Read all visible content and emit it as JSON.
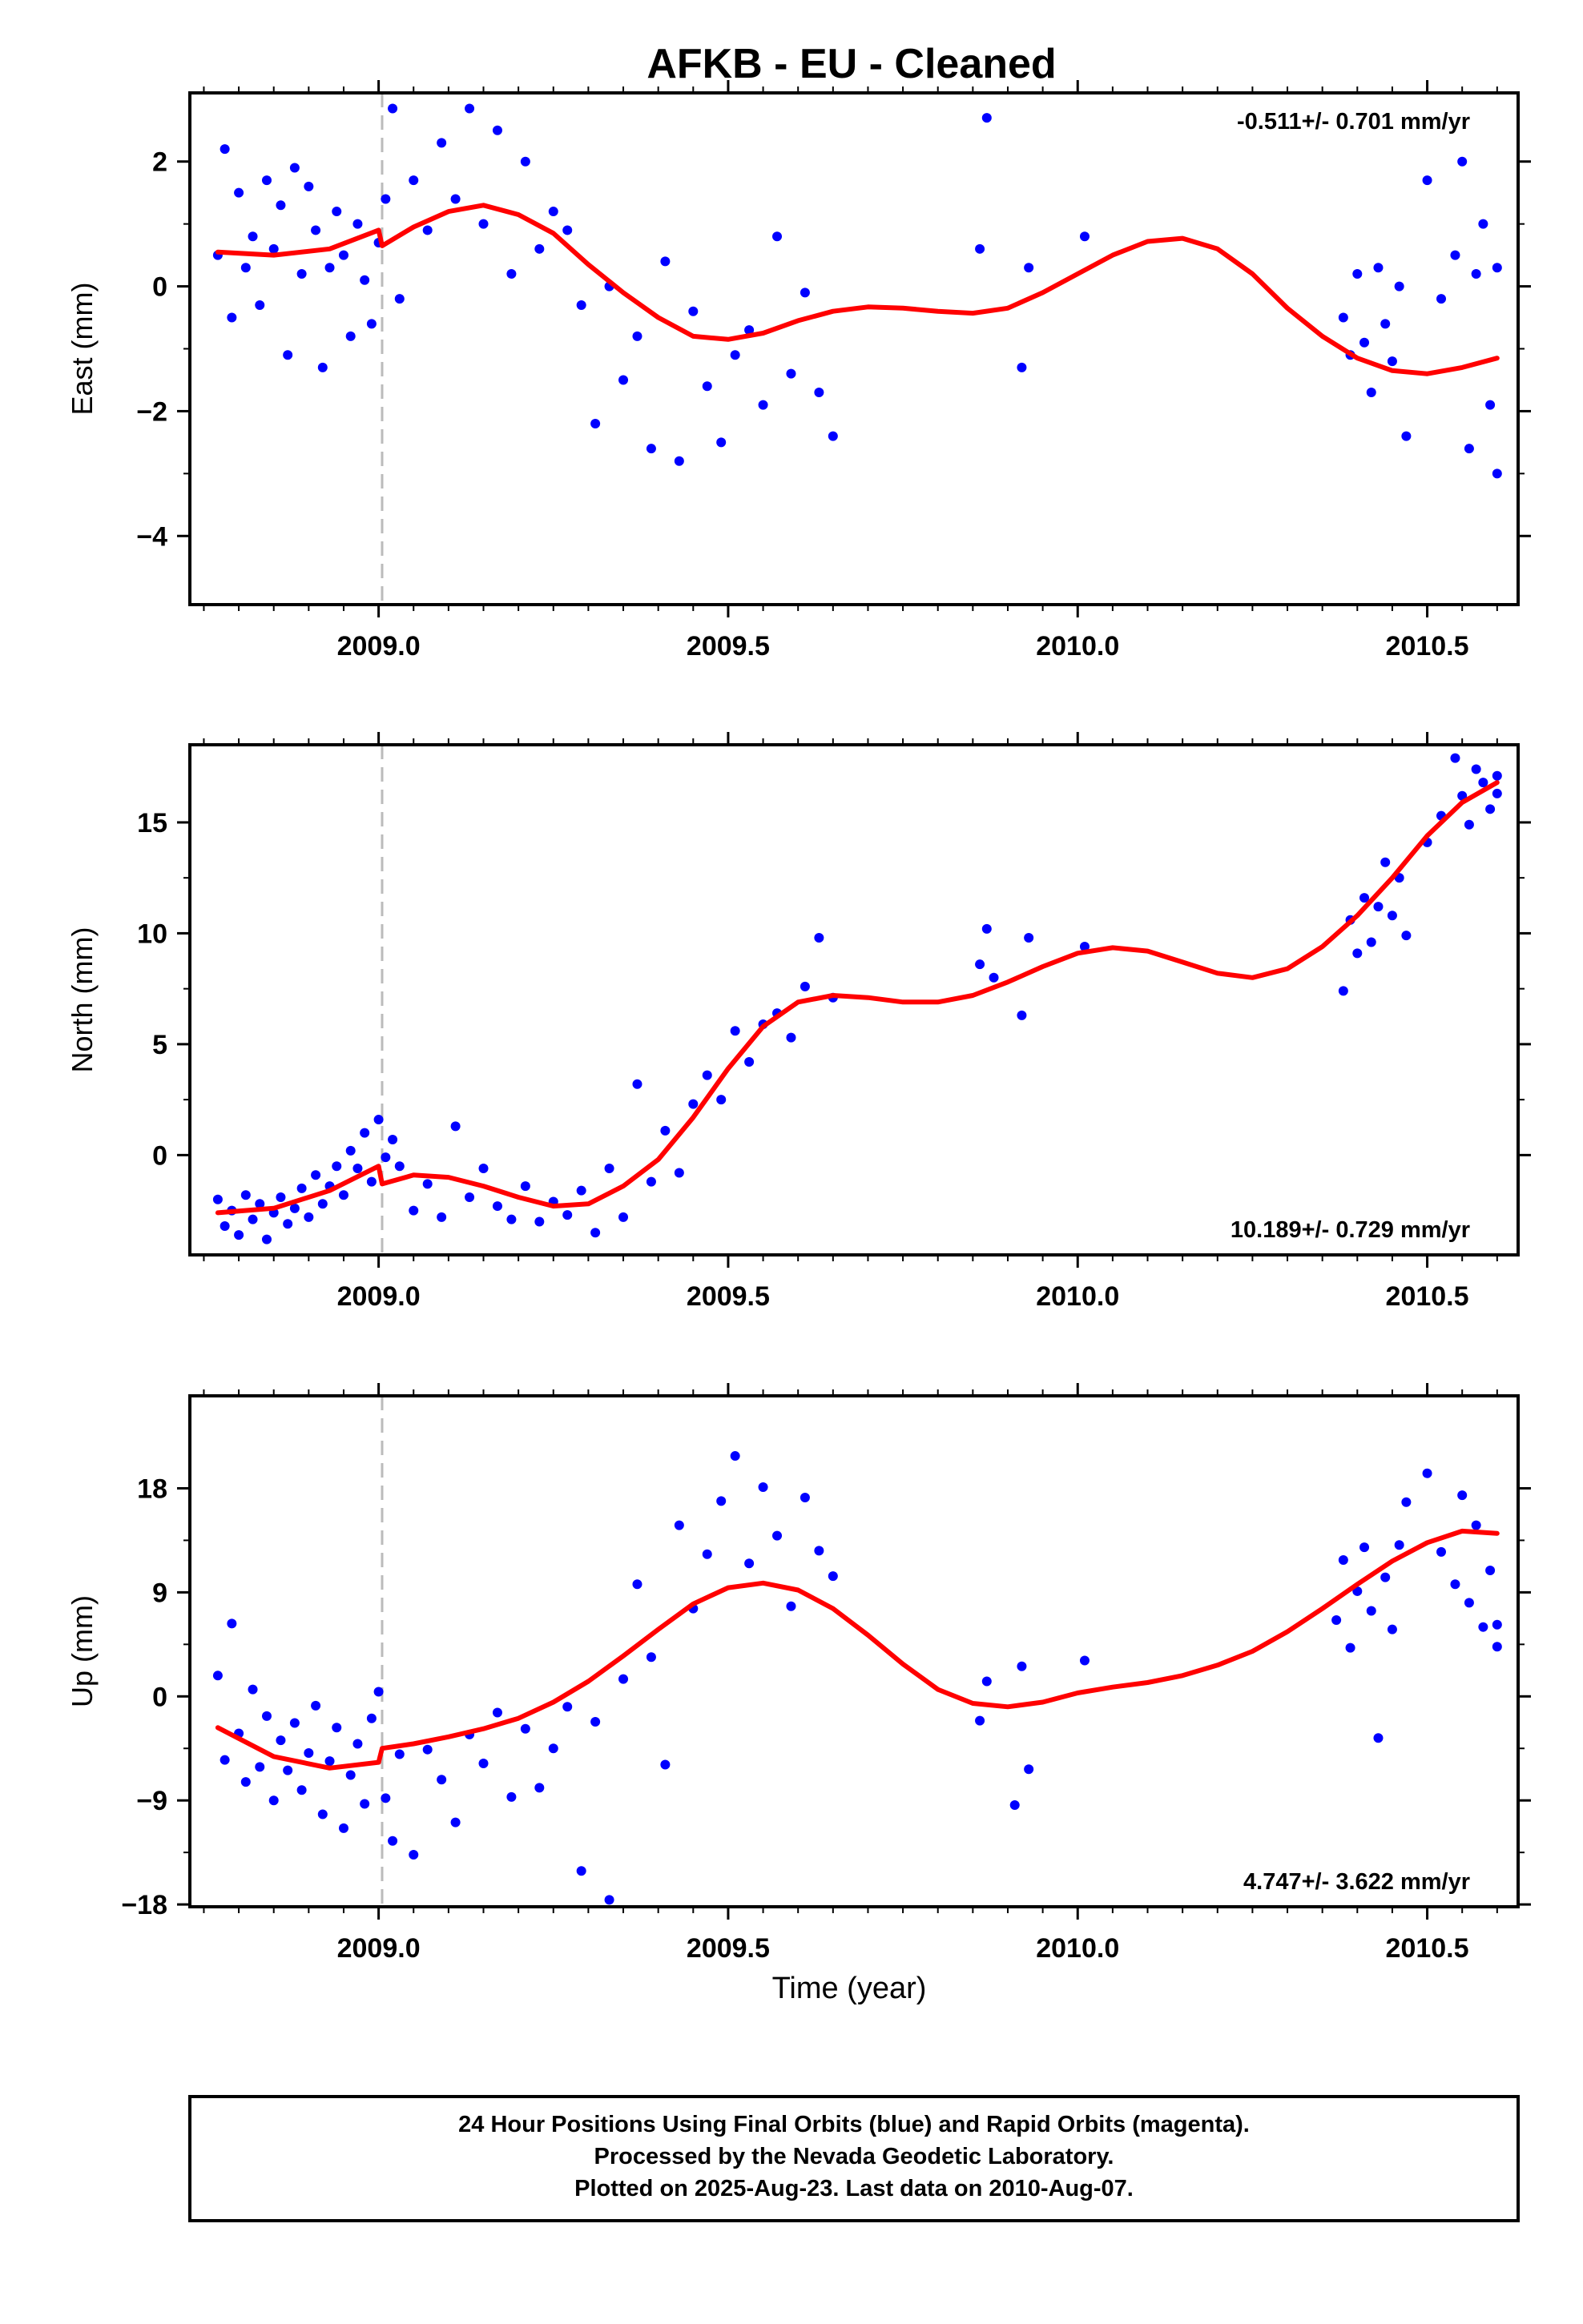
{
  "title": "AFKB  - EU - Cleaned",
  "xlabel": "Time (year)",
  "x_ticks": [
    2009.0,
    2009.5,
    2010.0,
    2010.5
  ],
  "x_tick_labels": [
    "2009.0",
    "2009.5",
    "2010.0",
    "2010.5"
  ],
  "footer": [
    "24 Hour Positions Using Final Orbits (blue) and Rapid Orbits (magenta).",
    "Processed by the Nevada Geodetic Laboratory.",
    "Plotted on 2025-Aug-23. Last data on 2010-Aug-07."
  ],
  "colors": {
    "final_orbits": "#0000ff",
    "model": "#ff0000",
    "event_line": "#bbbbbb",
    "frame": "#000000"
  },
  "chart_data": [
    {
      "type": "scatter",
      "ylabel": "East (mm)",
      "rate_label": "-0.511+/- 0.701 mm/yr",
      "xlim": [
        2008.73,
        2010.63
      ],
      "ylim": [
        -5.1,
        3.1
      ],
      "y_ticks": [
        -4,
        -2,
        0,
        2
      ],
      "y_tick_labels": [
        "−4",
        "−2",
        "0",
        "2"
      ],
      "event_x": 2009.005,
      "model_curve": {
        "x": [
          2008.77,
          2008.85,
          2008.93,
          2009.0,
          2009.005,
          2009.05,
          2009.1,
          2009.15,
          2009.2,
          2009.25,
          2009.3,
          2009.35,
          2009.4,
          2009.45,
          2009.5,
          2009.55,
          2009.6,
          2009.65,
          2009.7,
          2009.75,
          2009.8,
          2009.85,
          2009.9,
          2009.95,
          2010.0,
          2010.05,
          2010.1,
          2010.15,
          2010.2,
          2010.25,
          2010.3,
          2010.35,
          2010.4,
          2010.45,
          2010.5,
          2010.55,
          2010.6
        ],
        "y": [
          0.55,
          0.5,
          0.6,
          0.9,
          0.65,
          0.95,
          1.2,
          1.3,
          1.15,
          0.85,
          0.35,
          -0.1,
          -0.5,
          -0.8,
          -0.85,
          -0.75,
          -0.55,
          -0.4,
          -0.33,
          -0.35,
          -0.4,
          -0.43,
          -0.35,
          -0.1,
          0.2,
          0.5,
          0.72,
          0.77,
          0.6,
          0.2,
          -0.35,
          -0.8,
          -1.15,
          -1.35,
          -1.4,
          -1.3,
          -1.15
        ]
      },
      "points": {
        "x": [
          2008.77,
          2008.78,
          2008.79,
          2008.8,
          2008.81,
          2008.82,
          2008.83,
          2008.84,
          2008.85,
          2008.86,
          2008.87,
          2008.88,
          2008.89,
          2008.9,
          2008.91,
          2008.92,
          2008.93,
          2008.94,
          2008.95,
          2008.96,
          2008.97,
          2008.98,
          2008.99,
          2009.0,
          2009.01,
          2009.02,
          2009.03,
          2009.05,
          2009.07,
          2009.09,
          2009.11,
          2009.13,
          2009.15,
          2009.17,
          2009.19,
          2009.21,
          2009.23,
          2009.25,
          2009.27,
          2009.29,
          2009.31,
          2009.33,
          2009.35,
          2009.37,
          2009.39,
          2009.41,
          2009.43,
          2009.45,
          2009.47,
          2009.49,
          2009.51,
          2009.53,
          2009.55,
          2009.57,
          2009.59,
          2009.61,
          2009.63,
          2009.65,
          2009.86,
          2009.87,
          2009.92,
          2009.93,
          2010.01,
          2010.38,
          2010.39,
          2010.4,
          2010.41,
          2010.42,
          2010.43,
          2010.44,
          2010.45,
          2010.46,
          2010.47,
          2010.5,
          2010.52,
          2010.54,
          2010.55,
          2010.56,
          2010.57,
          2010.58,
          2010.59,
          2010.6,
          2010.6
        ],
        "y": [
          0.5,
          2.2,
          -0.5,
          1.5,
          0.3,
          0.8,
          -0.3,
          1.7,
          0.6,
          1.3,
          -1.1,
          1.9,
          0.2,
          1.6,
          0.9,
          -1.3,
          0.3,
          1.2,
          0.5,
          -0.8,
          1.0,
          0.1,
          -0.6,
          0.7,
          1.4,
          2.85,
          -0.2,
          1.7,
          0.9,
          2.3,
          1.4,
          2.85,
          1.0,
          2.5,
          0.2,
          2.0,
          0.6,
          1.2,
          0.9,
          -0.3,
          -2.2,
          0.0,
          -1.5,
          -0.8,
          -2.6,
          0.4,
          -2.8,
          -0.4,
          -1.6,
          -2.5,
          -1.1,
          -0.7,
          -1.9,
          0.8,
          -1.4,
          -0.1,
          -1.7,
          -2.4,
          0.6,
          2.7,
          -1.3,
          0.3,
          0.8,
          -0.5,
          -1.1,
          0.2,
          -0.9,
          -1.7,
          0.3,
          -0.6,
          -1.2,
          0.0,
          -2.4,
          1.7,
          -0.2,
          0.5,
          2.0,
          -2.6,
          0.2,
          1.0,
          -1.9,
          0.3,
          -3.0
        ]
      }
    },
    {
      "type": "scatter",
      "ylabel": "North (mm)",
      "rate_label": "10.189+/- 0.729 mm/yr",
      "xlim": [
        2008.73,
        2010.63
      ],
      "ylim": [
        -4.5,
        18.5
      ],
      "y_ticks": [
        0,
        5,
        10,
        15
      ],
      "y_tick_labels": [
        "0",
        "5",
        "10",
        "15"
      ],
      "event_x": 2009.005,
      "model_curve": {
        "x": [
          2008.77,
          2008.85,
          2008.93,
          2009.0,
          2009.005,
          2009.05,
          2009.1,
          2009.15,
          2009.2,
          2009.25,
          2009.3,
          2009.35,
          2009.4,
          2009.45,
          2009.5,
          2009.55,
          2009.6,
          2009.65,
          2009.7,
          2009.75,
          2009.8,
          2009.85,
          2009.9,
          2009.95,
          2010.0,
          2010.05,
          2010.1,
          2010.15,
          2010.2,
          2010.25,
          2010.3,
          2010.35,
          2010.4,
          2010.45,
          2010.5,
          2010.55,
          2010.6
        ],
        "y": [
          -2.6,
          -2.4,
          -1.6,
          -0.5,
          -1.3,
          -0.9,
          -1.0,
          -1.4,
          -1.9,
          -2.3,
          -2.2,
          -1.4,
          -0.2,
          1.7,
          3.9,
          5.8,
          6.9,
          7.2,
          7.1,
          6.9,
          6.9,
          7.2,
          7.8,
          8.5,
          9.1,
          9.35,
          9.2,
          8.7,
          8.2,
          8.0,
          8.4,
          9.4,
          10.8,
          12.5,
          14.4,
          15.9,
          16.8
        ]
      },
      "points": {
        "x": [
          2008.77,
          2008.78,
          2008.79,
          2008.8,
          2008.81,
          2008.82,
          2008.83,
          2008.84,
          2008.85,
          2008.86,
          2008.87,
          2008.88,
          2008.89,
          2008.9,
          2008.91,
          2008.92,
          2008.93,
          2008.94,
          2008.95,
          2008.96,
          2008.97,
          2008.98,
          2008.99,
          2009.0,
          2009.01,
          2009.02,
          2009.03,
          2009.05,
          2009.07,
          2009.09,
          2009.11,
          2009.13,
          2009.15,
          2009.17,
          2009.19,
          2009.21,
          2009.23,
          2009.25,
          2009.27,
          2009.29,
          2009.31,
          2009.33,
          2009.35,
          2009.37,
          2009.39,
          2009.41,
          2009.43,
          2009.45,
          2009.47,
          2009.49,
          2009.51,
          2009.53,
          2009.55,
          2009.57,
          2009.59,
          2009.61,
          2009.63,
          2009.65,
          2009.86,
          2009.87,
          2009.88,
          2009.92,
          2009.93,
          2010.01,
          2010.38,
          2010.39,
          2010.4,
          2010.41,
          2010.42,
          2010.43,
          2010.44,
          2010.45,
          2010.46,
          2010.47,
          2010.5,
          2010.52,
          2010.54,
          2010.55,
          2010.56,
          2010.57,
          2010.58,
          2010.59,
          2010.6,
          2010.6
        ],
        "y": [
          -2.0,
          -3.2,
          -2.5,
          -3.6,
          -1.8,
          -2.9,
          -2.2,
          -3.8,
          -2.6,
          -1.9,
          -3.1,
          -2.4,
          -1.5,
          -2.8,
          -0.9,
          -2.2,
          -1.4,
          -0.5,
          -1.8,
          0.2,
          -0.6,
          1.0,
          -1.2,
          1.6,
          -0.1,
          0.7,
          -0.5,
          -2.5,
          -1.3,
          -2.8,
          1.3,
          -1.9,
          -0.6,
          -2.3,
          -2.9,
          -1.4,
          -3.0,
          -2.1,
          -2.7,
          -1.6,
          -3.5,
          -0.6,
          -2.8,
          3.2,
          -1.2,
          1.1,
          -0.8,
          2.3,
          3.6,
          2.5,
          5.6,
          4.2,
          5.9,
          6.4,
          5.3,
          7.6,
          9.8,
          7.1,
          8.6,
          10.2,
          8.0,
          6.3,
          9.8,
          9.4,
          7.4,
          10.6,
          9.1,
          11.6,
          9.6,
          11.2,
          13.2,
          10.8,
          12.5,
          9.9,
          14.1,
          15.3,
          17.9,
          16.2,
          14.9,
          17.4,
          16.8,
          15.6,
          17.1,
          16.3
        ]
      }
    },
    {
      "type": "scatter",
      "ylabel": "Up (mm)",
      "rate_label": "4.747+/- 3.622 mm/yr",
      "xlim": [
        2008.73,
        2010.63
      ],
      "ylim": [
        -18.2,
        26.0
      ],
      "y_ticks": [
        -18,
        -9,
        0,
        9,
        18
      ],
      "y_tick_labels": [
        "−18",
        "−9",
        "0",
        "9",
        "18"
      ],
      "event_x": 2009.005,
      "model_curve": {
        "x": [
          2008.77,
          2008.85,
          2008.93,
          2009.0,
          2009.005,
          2009.05,
          2009.1,
          2009.15,
          2009.2,
          2009.25,
          2009.3,
          2009.35,
          2009.4,
          2009.45,
          2009.5,
          2009.55,
          2009.6,
          2009.65,
          2009.7,
          2009.75,
          2009.8,
          2009.85,
          2009.9,
          2009.95,
          2010.0,
          2010.05,
          2010.1,
          2010.15,
          2010.2,
          2010.25,
          2010.3,
          2010.35,
          2010.4,
          2010.45,
          2010.5,
          2010.55,
          2010.6
        ],
        "y": [
          -2.7,
          -5.2,
          -6.2,
          -5.7,
          -4.5,
          -4.1,
          -3.5,
          -2.8,
          -1.9,
          -0.5,
          1.3,
          3.5,
          5.8,
          8.0,
          9.4,
          9.8,
          9.2,
          7.6,
          5.3,
          2.8,
          0.6,
          -0.6,
          -0.9,
          -0.5,
          0.3,
          0.8,
          1.2,
          1.8,
          2.7,
          3.9,
          5.6,
          7.6,
          9.7,
          11.7,
          13.3,
          14.3,
          14.1
        ]
      },
      "points": {
        "x": [
          2008.77,
          2008.78,
          2008.79,
          2008.8,
          2008.81,
          2008.82,
          2008.83,
          2008.84,
          2008.85,
          2008.86,
          2008.87,
          2008.88,
          2008.89,
          2008.9,
          2008.91,
          2008.92,
          2008.93,
          2008.94,
          2008.95,
          2008.96,
          2008.97,
          2008.98,
          2008.99,
          2009.0,
          2009.01,
          2009.02,
          2009.03,
          2009.05,
          2009.07,
          2009.09,
          2009.11,
          2009.13,
          2009.15,
          2009.17,
          2009.19,
          2009.21,
          2009.23,
          2009.25,
          2009.27,
          2009.29,
          2009.31,
          2009.33,
          2009.35,
          2009.37,
          2009.39,
          2009.41,
          2009.43,
          2009.45,
          2009.47,
          2009.49,
          2009.51,
          2009.53,
          2009.55,
          2009.57,
          2009.59,
          2009.61,
          2009.63,
          2009.65,
          2009.86,
          2009.87,
          2009.91,
          2009.92,
          2009.93,
          2010.01,
          2010.37,
          2010.38,
          2010.39,
          2010.4,
          2010.41,
          2010.42,
          2010.43,
          2010.44,
          2010.45,
          2010.46,
          2010.47,
          2010.5,
          2010.52,
          2010.54,
          2010.55,
          2010.56,
          2010.57,
          2010.58,
          2010.59,
          2010.6,
          2010.6
        ],
        "y": [
          1.8,
          -5.5,
          6.3,
          -3.2,
          -7.4,
          0.6,
          -6.1,
          -1.7,
          -9.0,
          -3.8,
          -6.4,
          -2.3,
          -8.1,
          -4.9,
          -0.8,
          -10.2,
          -5.6,
          -2.7,
          -11.4,
          -6.8,
          -4.1,
          -9.3,
          -1.9,
          0.4,
          -8.8,
          -12.5,
          -5.0,
          -13.7,
          -4.6,
          -7.2,
          -10.9,
          -3.3,
          -5.8,
          -1.4,
          -8.7,
          -2.8,
          -7.9,
          -4.5,
          -0.9,
          -15.1,
          -2.2,
          -17.6,
          1.5,
          9.7,
          3.4,
          -5.9,
          14.8,
          7.6,
          12.3,
          16.9,
          20.8,
          11.5,
          18.1,
          13.9,
          7.8,
          17.2,
          12.6,
          10.4,
          -2.1,
          1.3,
          -9.4,
          2.6,
          -6.3,
          3.1,
          6.6,
          11.8,
          4.2,
          9.1,
          12.9,
          7.4,
          -3.6,
          10.3,
          5.8,
          13.1,
          16.8,
          19.3,
          12.5,
          9.7,
          17.4,
          8.1,
          14.8,
          6.0,
          10.9,
          4.3,
          6.2
        ]
      }
    }
  ]
}
